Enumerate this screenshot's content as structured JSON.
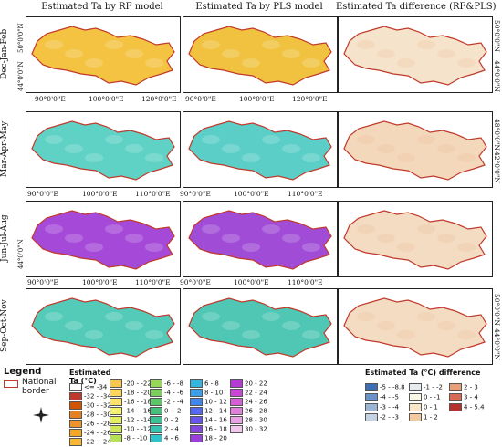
{
  "column_titles": [
    "Estimated Ta by RF model",
    "Estimated Ta by PLS model",
    "Estimated Ta difference (RF&PLS)"
  ],
  "row_labels": [
    "Dec-Jan-Feb",
    "Mar-Apr-May",
    "Jun-Jul-Aug",
    "Sep-Oct-Nov"
  ],
  "ticks": {
    "lon_row1": [
      "90°0'0\"E",
      "100°0'0\"E",
      "120°0'0\"E"
    ],
    "lon_row2": [
      "90°0'0\"E",
      "100°0'0\"E",
      "110°0'0\"E"
    ],
    "lon_row3": [
      "90°0'0\"E",
      "100°0'0\"E",
      "110°0'0\"E"
    ],
    "lat_left": [
      "50°0'0\"N",
      "44°0'0\"N"
    ],
    "lat_right": [
      "50°0'0\"N",
      "44°0'0\"N"
    ],
    "lat_right_row2": [
      "48°0'0\"N",
      "42°0'0\"N"
    ],
    "lat_left_row3": [
      "44°0'0\"N"
    ]
  },
  "legend": {
    "title": "Legend",
    "border_label": "National border",
    "border_color": "#c0392b",
    "estimated_label": "Estimated Ta (°C)",
    "ta_bins": [
      {
        "label": "<= -34",
        "color": "#ffffff"
      },
      {
        "label": "-32 - -34",
        "color": "#c0392b"
      },
      {
        "label": "-30 - -32",
        "color": "#d35400"
      },
      {
        "label": "-28 - -30",
        "color": "#e67e22"
      },
      {
        "label": "-26 - -28",
        "color": "#f0932b"
      },
      {
        "label": "-24 - -26",
        "color": "#f5a623"
      },
      {
        "label": "-22 - -24",
        "color": "#f7b733"
      },
      {
        "label": "-20 - -22",
        "color": "#f9c74f"
      },
      {
        "label": "-18 - -20",
        "color": "#fbd75b"
      },
      {
        "label": "-16 - -18",
        "color": "#fde26b"
      },
      {
        "label": "-14 - -16",
        "color": "#f4f16a"
      },
      {
        "label": "-12 - -14",
        "color": "#e4ef5f"
      },
      {
        "label": "-10 - -12",
        "color": "#cfe85a"
      },
      {
        "label": "-8 - -10",
        "color": "#b6e056"
      },
      {
        "label": "-6 - -8",
        "color": "#98d65a"
      },
      {
        "label": "-4 - -6",
        "color": "#7ccc5f"
      },
      {
        "label": "-2 - -4",
        "color": "#5ec46a"
      },
      {
        "label": "0 - -2",
        "color": "#46be7c"
      },
      {
        "label": "0 - 2",
        "color": "#3cc195"
      },
      {
        "label": "2 - 4",
        "color": "#35c4b0"
      },
      {
        "label": "4 - 6",
        "color": "#2fc3c9"
      },
      {
        "label": "6 - 8",
        "color": "#33b5dd"
      },
      {
        "label": "8 - 10",
        "color": "#3a9ee8"
      },
      {
        "label": "10 - 12",
        "color": "#4185ef"
      },
      {
        "label": "12 - 14",
        "color": "#5469f0"
      },
      {
        "label": "14 - 16",
        "color": "#6a55ea"
      },
      {
        "label": "16 - 18",
        "color": "#8148e4"
      },
      {
        "label": "18 - 20",
        "color": "#9b3fdc"
      },
      {
        "label": "20 - 22",
        "color": "#b43bd6"
      },
      {
        "label": "22 - 24",
        "color": "#c946d6"
      },
      {
        "label": "24 - 26",
        "color": "#d65fd8"
      },
      {
        "label": "26 - 28",
        "color": "#e07fdc"
      },
      {
        "label": "28 - 30",
        "color": "#e9a2e3"
      },
      {
        "label": "30 - 32",
        "color": "#f3c8ee"
      }
    ],
    "difference_label": "Estimated Ta (°C) difference",
    "diff_bins": [
      {
        "label": "-5 - -8.8",
        "color": "#3b6fb6"
      },
      {
        "label": "-4 - -5",
        "color": "#6c93c8"
      },
      {
        "label": "-3 - -4",
        "color": "#9bb5d6"
      },
      {
        "label": "-2 - -3",
        "color": "#c4d3e3"
      },
      {
        "label": "-1 - -2",
        "color": "#e6ebee"
      },
      {
        "label": "0 - -1",
        "color": "#fbf7e6"
      },
      {
        "label": "0 - 1",
        "color": "#f9e5c7"
      },
      {
        "label": "1 - 2",
        "color": "#f2c9a0"
      },
      {
        "label": "2 - 3",
        "color": "#e7a07a"
      },
      {
        "label": "3 - 4",
        "color": "#d86b55"
      },
      {
        "label": "4 - 5.4",
        "color": "#b8302c"
      }
    ]
  },
  "panel_fills": [
    [
      "#f3c341",
      "#f0c23f",
      "#f6e3cb"
    ],
    [
      "#5fd2c5",
      "#5bcfc7",
      "#f4d8bb"
    ],
    [
      "#a54ad8",
      "#a04cd6",
      "#f3dcc2"
    ],
    [
      "#54cbb8",
      "#4fc7b4",
      "#f4dcc2"
    ]
  ]
}
